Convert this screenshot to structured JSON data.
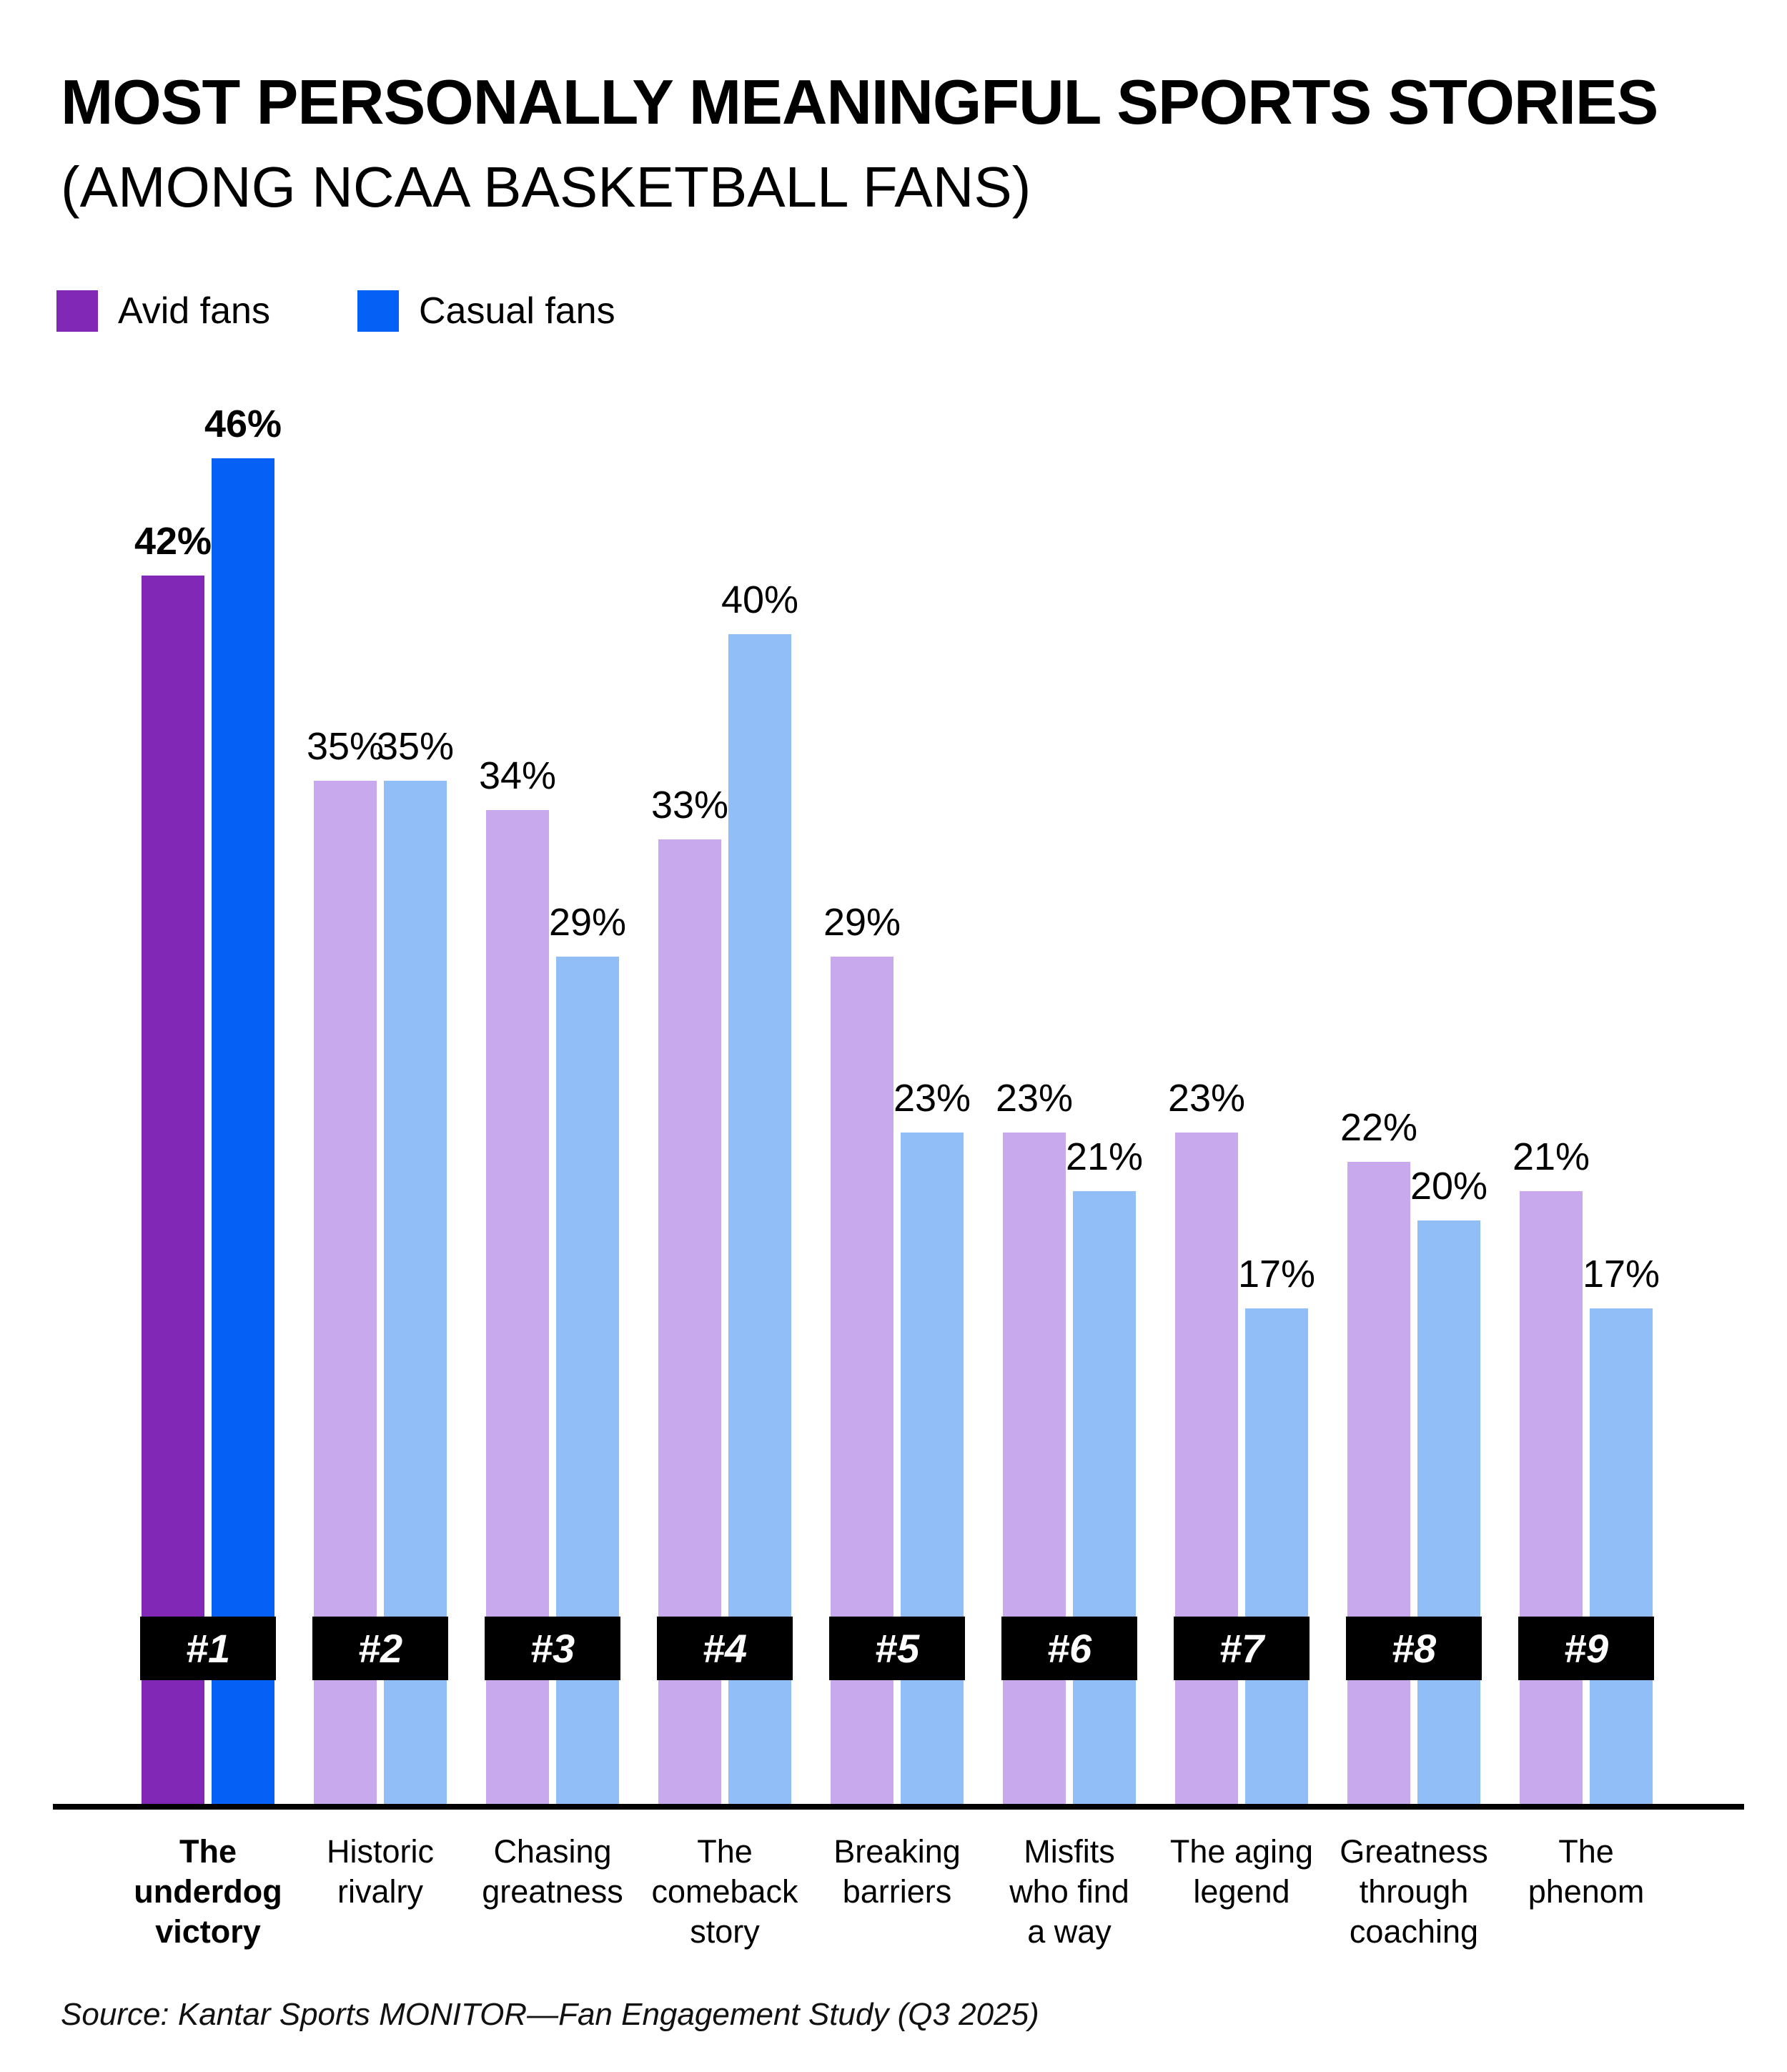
{
  "title": "MOST PERSONALLY MEANINGFUL SPORTS STORIES",
  "subtitle": "(AMONG NCAA BASKETBALL FANS)",
  "legend": [
    {
      "label": "Avid fans",
      "color": "#8129B6"
    },
    {
      "label": "Casual fans",
      "color": "#0560F6"
    }
  ],
  "source": "Source: Kantar Sports MONITOR—Fan Engagement Study (Q3 2025)",
  "colors": {
    "avid_highlight": "#8129B6",
    "casual_highlight": "#0560F6",
    "avid_muted": "#C8A9EE",
    "casual_muted": "#92BEF8",
    "badge_bg": "#000000",
    "badge_text": "#ffffff",
    "axis": "#000000"
  },
  "chart_data": {
    "type": "bar",
    "title": "MOST PERSONALLY MEANINGFUL SPORTS STORIES (AMONG NCAA BASKETBALL FANS)",
    "unit": "%",
    "ylim": [
      0,
      50
    ],
    "grid": false,
    "legend_position": "top-left",
    "highlight_index": 0,
    "categories": [
      "The underdog victory",
      "Historic rivalry",
      "Chasing greatness",
      "The comeback story",
      "Breaking barriers",
      "Misfits who find a way",
      "The aging legend",
      "Greatness through coaching",
      "The phenom"
    ],
    "category_lines": [
      "The\nunderdog\nvictory",
      "Historic\nrivalry",
      "Chasing\ngreatness",
      "The\ncomeback\nstory",
      "Breaking\nbarriers",
      "Misfits\nwho find\na way",
      "The aging\nlegend",
      "Greatness\nthrough\ncoaching",
      "The\nphenom"
    ],
    "ranks": [
      "#1",
      "#2",
      "#3",
      "#4",
      "#5",
      "#6",
      "#7",
      "#8",
      "#9"
    ],
    "series": [
      {
        "name": "Avid fans",
        "values": [
          42,
          35,
          34,
          33,
          29,
          23,
          23,
          22,
          21
        ]
      },
      {
        "name": "Casual fans",
        "values": [
          46,
          35,
          29,
          40,
          23,
          21,
          17,
          20,
          17
        ]
      }
    ],
    "value_labels": [
      [
        "42%",
        "35%",
        "34%",
        "33%",
        "29%",
        "23%",
        "23%",
        "22%",
        "21%"
      ],
      [
        "46%",
        "35%",
        "29%",
        "40%",
        "23%",
        "21%",
        "17%",
        "20%",
        "17%"
      ]
    ]
  }
}
